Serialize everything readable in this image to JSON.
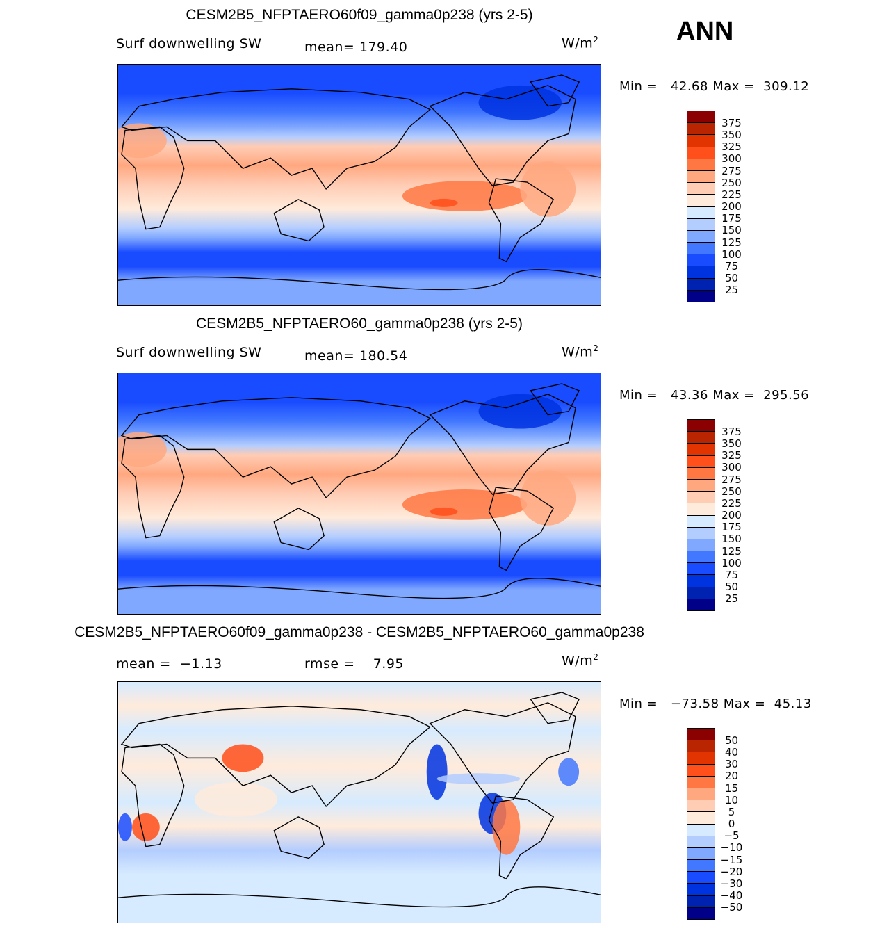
{
  "season": "ANN",
  "chart_data": [
    {
      "type": "heatmap",
      "title": "CESM2B5_NFPTAERO60f09_gamma0p238 (yrs 2-5)",
      "variable": "Surf downwelling SW",
      "mean_label": "mean=",
      "mean": "179.40",
      "units": "W/m",
      "units_sup": "2",
      "min_label": "Min =",
      "min": "42.68",
      "max_label": "Max =",
      "max": "309.12",
      "levels": [
        "375",
        "350",
        "325",
        "300",
        "275",
        "250",
        "225",
        "200",
        "175",
        "150",
        "125",
        "100",
        "75",
        "50",
        "25"
      ]
    },
    {
      "type": "heatmap",
      "title": "CESM2B5_NFPTAERO60_gamma0p238 (yrs 2-5)",
      "variable": "Surf downwelling SW",
      "mean_label": "mean=",
      "mean": "180.54",
      "units": "W/m",
      "units_sup": "2",
      "min_label": "Min =",
      "min": "43.36",
      "max_label": "Max =",
      "max": "295.56",
      "levels": [
        "375",
        "350",
        "325",
        "300",
        "275",
        "250",
        "225",
        "200",
        "175",
        "150",
        "125",
        "100",
        "75",
        "50",
        "25"
      ]
    },
    {
      "type": "heatmap",
      "title": "CESM2B5_NFPTAERO60f09_gamma0p238 - CESM2B5_NFPTAERO60_gamma0p238",
      "mean_label": "mean =",
      "mean": "−1.13",
      "rmse_label": "rmse =",
      "rmse": "7.95",
      "units": "W/m",
      "units_sup": "2",
      "min_label": "Min =",
      "min": "−73.58",
      "max_label": "Max =",
      "max": "45.13",
      "levels": [
        "50",
        "40",
        "30",
        "20",
        "15",
        "10",
        "5",
        "0",
        "−5",
        "−10",
        "−15",
        "−20",
        "−30",
        "−40",
        "−50"
      ]
    }
  ],
  "colors": [
    "#8b0000",
    "#b82500",
    "#e23400",
    "#ff4f1a",
    "#ff7843",
    "#ffa880",
    "#ffccb4",
    "#ffebdb",
    "#d6ebff",
    "#b3cdff",
    "#80a8ff",
    "#4278ff",
    "#1a4cff",
    "#0033e0",
    "#0022b0",
    "#000088"
  ]
}
